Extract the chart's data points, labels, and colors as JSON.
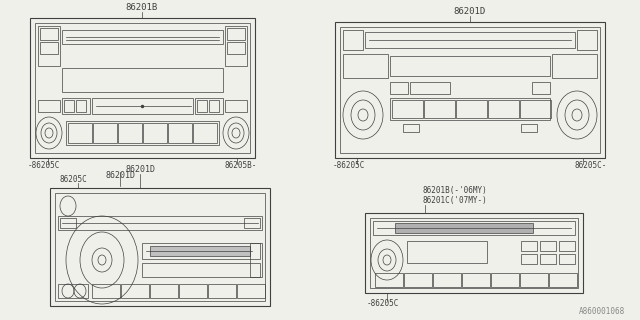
{
  "bg_color": "#f0f0eb",
  "line_color": "#404040",
  "lw": 0.8,
  "tlw": 0.5,
  "fig_w": 6.4,
  "fig_h": 3.2,
  "watermark": "A860001068",
  "tl_label": "86201B",
  "tl_bl": "86205C",
  "tl_br": "86205B",
  "tl_bot": "86201D",
  "tr_label": "86201D",
  "tr_bl": "86205C",
  "tr_br": "86205C",
  "bl_label": "86201D",
  "bl_sub": "86205C",
  "br_label1": "86201B(-'06MY)",
  "br_label2": "86201C('07MY-)",
  "br_bl": "86205C"
}
